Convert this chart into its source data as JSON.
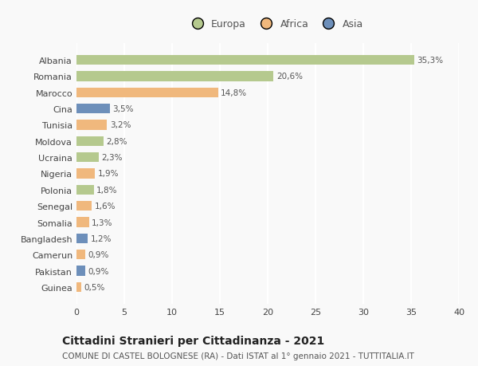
{
  "categories": [
    "Albania",
    "Romania",
    "Marocco",
    "Cina",
    "Tunisia",
    "Moldova",
    "Ucraina",
    "Nigeria",
    "Polonia",
    "Senegal",
    "Somalia",
    "Bangladesh",
    "Camerun",
    "Pakistan",
    "Guinea"
  ],
  "values": [
    35.3,
    20.6,
    14.8,
    3.5,
    3.2,
    2.8,
    2.3,
    1.9,
    1.8,
    1.6,
    1.3,
    1.2,
    0.9,
    0.9,
    0.5
  ],
  "labels": [
    "35,3%",
    "20,6%",
    "14,8%",
    "3,5%",
    "3,2%",
    "2,8%",
    "2,3%",
    "1,9%",
    "1,8%",
    "1,6%",
    "1,3%",
    "1,2%",
    "0,9%",
    "0,9%",
    "0,5%"
  ],
  "continents": [
    "Europa",
    "Europa",
    "Africa",
    "Asia",
    "Africa",
    "Europa",
    "Europa",
    "Africa",
    "Europa",
    "Africa",
    "Africa",
    "Asia",
    "Africa",
    "Asia",
    "Africa"
  ],
  "colors": {
    "Europa": "#b5c98e",
    "Africa": "#f0b87d",
    "Asia": "#6d8fba"
  },
  "legend_labels": [
    "Europa",
    "Africa",
    "Asia"
  ],
  "legend_colors": [
    "#b5c98e",
    "#f0b87d",
    "#6d8fba"
  ],
  "xlim": [
    0,
    40
  ],
  "xticks": [
    0,
    5,
    10,
    15,
    20,
    25,
    30,
    35,
    40
  ],
  "title": "Cittadini Stranieri per Cittadinanza - 2021",
  "subtitle": "COMUNE DI CASTEL BOLOGNESE (RA) - Dati ISTAT al 1° gennaio 2021 - TUTTITALIA.IT",
  "background_color": "#f9f9f9",
  "grid_color": "#ffffff",
  "bar_height": 0.6,
  "label_fontsize": 7.5,
  "title_fontsize": 10,
  "subtitle_fontsize": 7.5,
  "ytick_fontsize": 8,
  "xtick_fontsize": 8,
  "legend_fontsize": 9
}
